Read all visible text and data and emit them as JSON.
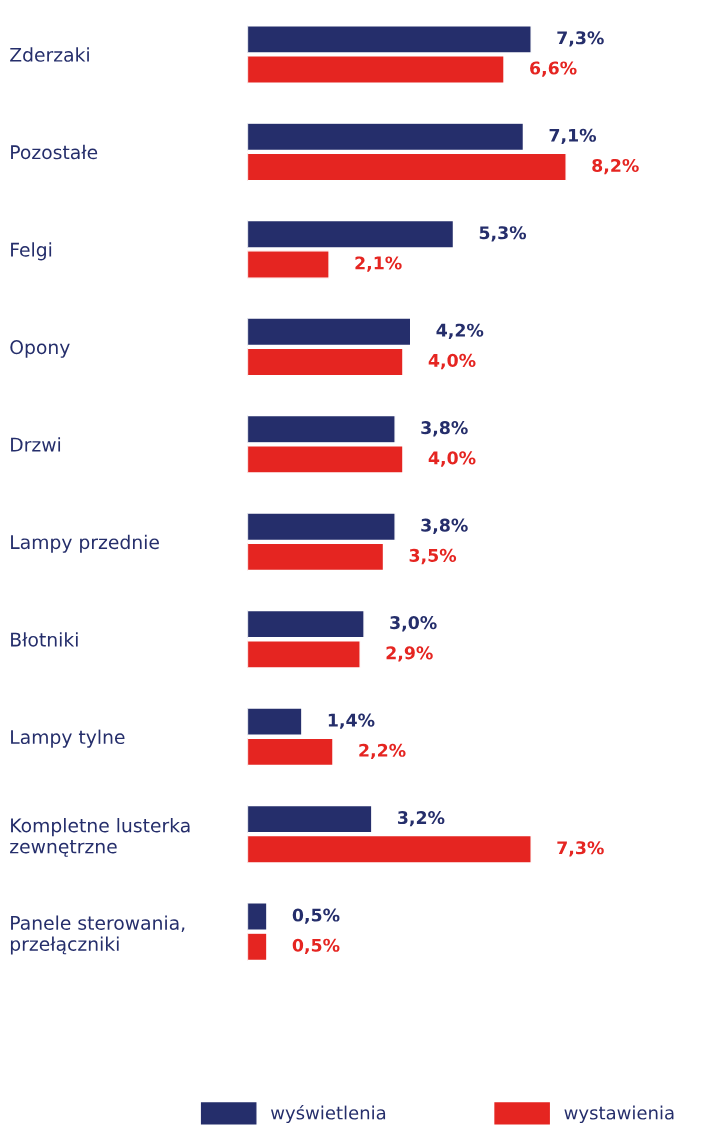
{
  "chart_data": {
    "type": "bar",
    "orientation": "horizontal",
    "categories": [
      "Zderzaki",
      "Pozostałe",
      "Felgi",
      "Opony",
      "Drzwi",
      "Lampy przednie",
      "Błotniki",
      "Lampy tylne",
      "Kompletne lusterka\nzewnętrzne",
      "Panele sterowania,\nprzełączniki"
    ],
    "series": [
      {
        "name": "wyświetlenia",
        "color": "#252e6b",
        "values": [
          7.3,
          7.1,
          5.3,
          4.2,
          3.8,
          3.8,
          3.0,
          1.4,
          3.2,
          0.5
        ],
        "value_labels": [
          "7,3%",
          "7,1%",
          "5,3%",
          "4,2%",
          "3,8%",
          "3,8%",
          "3,0%",
          "1,4%",
          "3,2%",
          "0,5%"
        ]
      },
      {
        "name": "wystawienia",
        "color": "#e52521",
        "values": [
          6.6,
          8.2,
          2.1,
          4.0,
          4.0,
          3.5,
          2.9,
          2.2,
          7.3,
          0.5
        ],
        "value_labels": [
          "6,6%",
          "8,2%",
          "2,1%",
          "4,0%",
          "4,0%",
          "3,5%",
          "2,9%",
          "2,2%",
          "7,3%",
          "0,5%"
        ]
      }
    ],
    "tick_labels": "y",
    "grid": false,
    "legend": "bottom"
  }
}
